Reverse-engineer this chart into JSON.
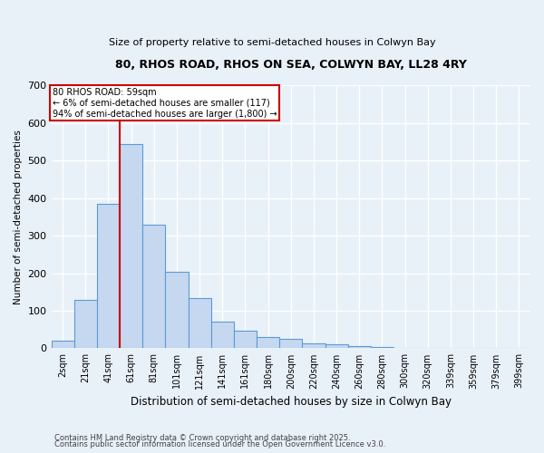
{
  "title_line1": "80, RHOS ROAD, RHOS ON SEA, COLWYN BAY, LL28 4RY",
  "title_line2": "Size of property relative to semi-detached houses in Colwyn Bay",
  "xlabel": "Distribution of semi-detached houses by size in Colwyn Bay",
  "ylabel": "Number of semi-detached properties",
  "bin_labels": [
    "2sqm",
    "21sqm",
    "41sqm",
    "61sqm",
    "81sqm",
    "101sqm",
    "121sqm",
    "141sqm",
    "161sqm",
    "180sqm",
    "200sqm",
    "220sqm",
    "240sqm",
    "260sqm",
    "280sqm",
    "300sqm",
    "320sqm",
    "339sqm",
    "359sqm",
    "379sqm",
    "399sqm"
  ],
  "bar_values": [
    20,
    130,
    385,
    545,
    330,
    205,
    135,
    70,
    47,
    30,
    25,
    12,
    10,
    6,
    3,
    2,
    1,
    0,
    0,
    1,
    0
  ],
  "bar_color": "#c5d8f0",
  "bar_edge_color": "#5b9bd5",
  "annotation_line1": "80 RHOS ROAD: 59sqm",
  "annotation_line2": "← 6% of semi-detached houses are smaller (117)",
  "annotation_line3": "94% of semi-detached houses are larger (1,800) →",
  "vline_color": "#cc0000",
  "annotation_edge_color": "#cc0000",
  "ylim": [
    0,
    700
  ],
  "yticks": [
    0,
    100,
    200,
    300,
    400,
    500,
    600,
    700
  ],
  "background_color": "#e8f0f8",
  "grid_color": "#ffffff",
  "footer1": "Contains HM Land Registry data © Crown copyright and database right 2025.",
  "footer2": "Contains public sector information licensed under the Open Government Licence v3.0."
}
